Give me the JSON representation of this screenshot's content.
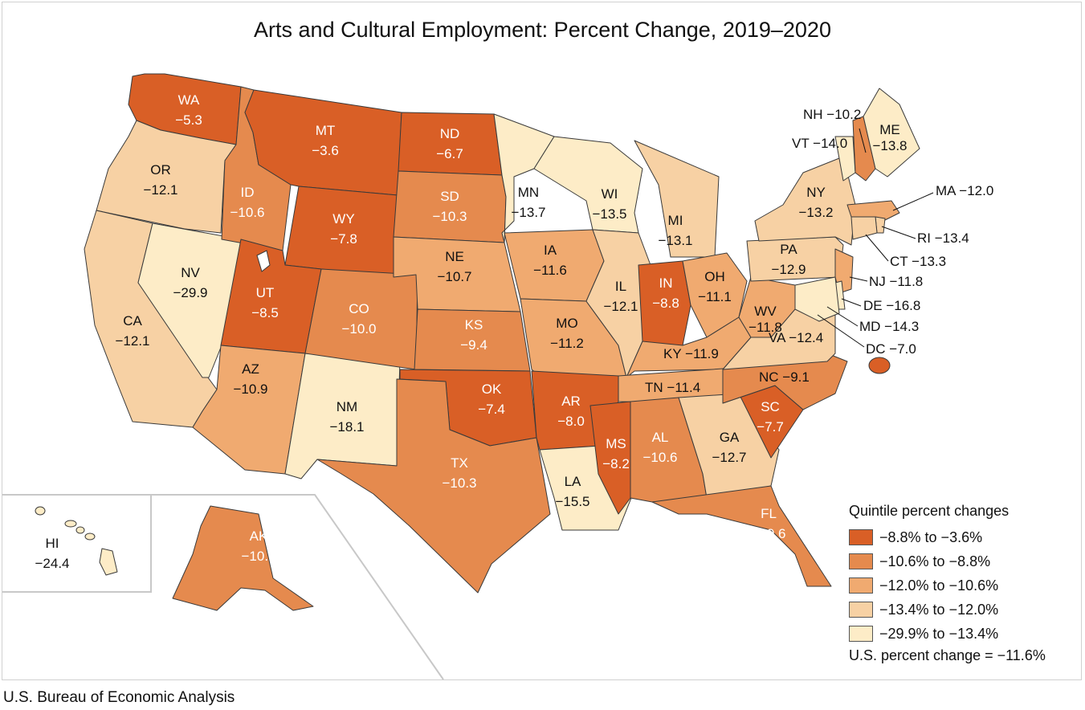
{
  "title": "Arts and Cultural Employment: Percent Change, 2019–2020",
  "source": "U.S. Bureau of Economic Analysis",
  "colors": {
    "q1": "#d95f26",
    "q2": "#e58a4e",
    "q3": "#f0aa70",
    "q4": "#f7d1a4",
    "q5": "#fdecc7",
    "border": "#3a3a3a"
  },
  "states": [
    {
      "abbr": "WA",
      "value": "−5.3",
      "quintile": "q1"
    },
    {
      "abbr": "OR",
      "value": "−12.1",
      "quintile": "q4"
    },
    {
      "abbr": "CA",
      "value": "−12.1",
      "quintile": "q4"
    },
    {
      "abbr": "NV",
      "value": "−29.9",
      "quintile": "q5"
    },
    {
      "abbr": "ID",
      "value": "−10.6",
      "quintile": "q2"
    },
    {
      "abbr": "MT",
      "value": "−3.6",
      "quintile": "q1"
    },
    {
      "abbr": "WY",
      "value": "−7.8",
      "quintile": "q1"
    },
    {
      "abbr": "UT",
      "value": "−8.5",
      "quintile": "q1"
    },
    {
      "abbr": "AZ",
      "value": "−10.9",
      "quintile": "q3"
    },
    {
      "abbr": "NM",
      "value": "−18.1",
      "quintile": "q5"
    },
    {
      "abbr": "CO",
      "value": "−10.0",
      "quintile": "q2"
    },
    {
      "abbr": "ND",
      "value": "−6.7",
      "quintile": "q1"
    },
    {
      "abbr": "SD",
      "value": "−10.3",
      "quintile": "q2"
    },
    {
      "abbr": "NE",
      "value": "−10.7",
      "quintile": "q3"
    },
    {
      "abbr": "KS",
      "value": "−9.4",
      "quintile": "q2"
    },
    {
      "abbr": "OK",
      "value": "−7.4",
      "quintile": "q1"
    },
    {
      "abbr": "TX",
      "value": "−10.3",
      "quintile": "q2"
    },
    {
      "abbr": "MN",
      "value": "−13.7",
      "quintile": "q5"
    },
    {
      "abbr": "IA",
      "value": "−11.6",
      "quintile": "q3"
    },
    {
      "abbr": "MO",
      "value": "−11.2",
      "quintile": "q3"
    },
    {
      "abbr": "AR",
      "value": "−8.0",
      "quintile": "q1"
    },
    {
      "abbr": "LA",
      "value": "−15.5",
      "quintile": "q5"
    },
    {
      "abbr": "WI",
      "value": "−13.5",
      "quintile": "q5"
    },
    {
      "abbr": "IL",
      "value": "−12.1",
      "quintile": "q4"
    },
    {
      "abbr": "MI",
      "value": "−13.1",
      "quintile": "q4"
    },
    {
      "abbr": "IN",
      "value": "−8.8",
      "quintile": "q1"
    },
    {
      "abbr": "OH",
      "value": "−11.1",
      "quintile": "q3"
    },
    {
      "abbr": "KY",
      "value": "−11.9",
      "quintile": "q3"
    },
    {
      "abbr": "TN",
      "value": "−11.4",
      "quintile": "q3"
    },
    {
      "abbr": "MS",
      "value": "−8.2",
      "quintile": "q1"
    },
    {
      "abbr": "AL",
      "value": "−10.6",
      "quintile": "q2"
    },
    {
      "abbr": "GA",
      "value": "−12.7",
      "quintile": "q4"
    },
    {
      "abbr": "FL",
      "value": "−10.6",
      "quintile": "q2"
    },
    {
      "abbr": "SC",
      "value": "−7.7",
      "quintile": "q1"
    },
    {
      "abbr": "NC",
      "value": "−9.1",
      "quintile": "q2"
    },
    {
      "abbr": "VA",
      "value": "−12.4",
      "quintile": "q4"
    },
    {
      "abbr": "WV",
      "value": "−11.8",
      "quintile": "q3"
    },
    {
      "abbr": "PA",
      "value": "−12.9",
      "quintile": "q4"
    },
    {
      "abbr": "NY",
      "value": "−13.2",
      "quintile": "q4"
    },
    {
      "abbr": "VT",
      "value": "−14.0",
      "quintile": "q5"
    },
    {
      "abbr": "NH",
      "value": "−10.2",
      "quintile": "q2"
    },
    {
      "abbr": "ME",
      "value": "−13.8",
      "quintile": "q5"
    },
    {
      "abbr": "MA",
      "value": "−12.0",
      "quintile": "q3"
    },
    {
      "abbr": "RI",
      "value": "−13.4",
      "quintile": "q4"
    },
    {
      "abbr": "CT",
      "value": "−13.3",
      "quintile": "q4"
    },
    {
      "abbr": "NJ",
      "value": "−11.8",
      "quintile": "q3"
    },
    {
      "abbr": "DE",
      "value": "−16.8",
      "quintile": "q5"
    },
    {
      "abbr": "MD",
      "value": "−14.3",
      "quintile": "q5"
    },
    {
      "abbr": "DC",
      "value": "−7.0",
      "quintile": "q1"
    },
    {
      "abbr": "AK",
      "value": "−10.6",
      "quintile": "q2"
    },
    {
      "abbr": "HI",
      "value": "−24.4",
      "quintile": "q5"
    }
  ],
  "legend": {
    "title": "Quintile percent changes",
    "items": [
      {
        "label": "−8.8% to −3.6%",
        "quintile": "q1"
      },
      {
        "label": "−10.6% to −8.8%",
        "quintile": "q2"
      },
      {
        "label": "−12.0% to −10.6%",
        "quintile": "q3"
      },
      {
        "label": "−13.4% to −12.0%",
        "quintile": "q4"
      },
      {
        "label": "−29.9% to −13.4%",
        "quintile": "q5"
      }
    ],
    "us_change": "U.S. percent change = −11.6%"
  }
}
